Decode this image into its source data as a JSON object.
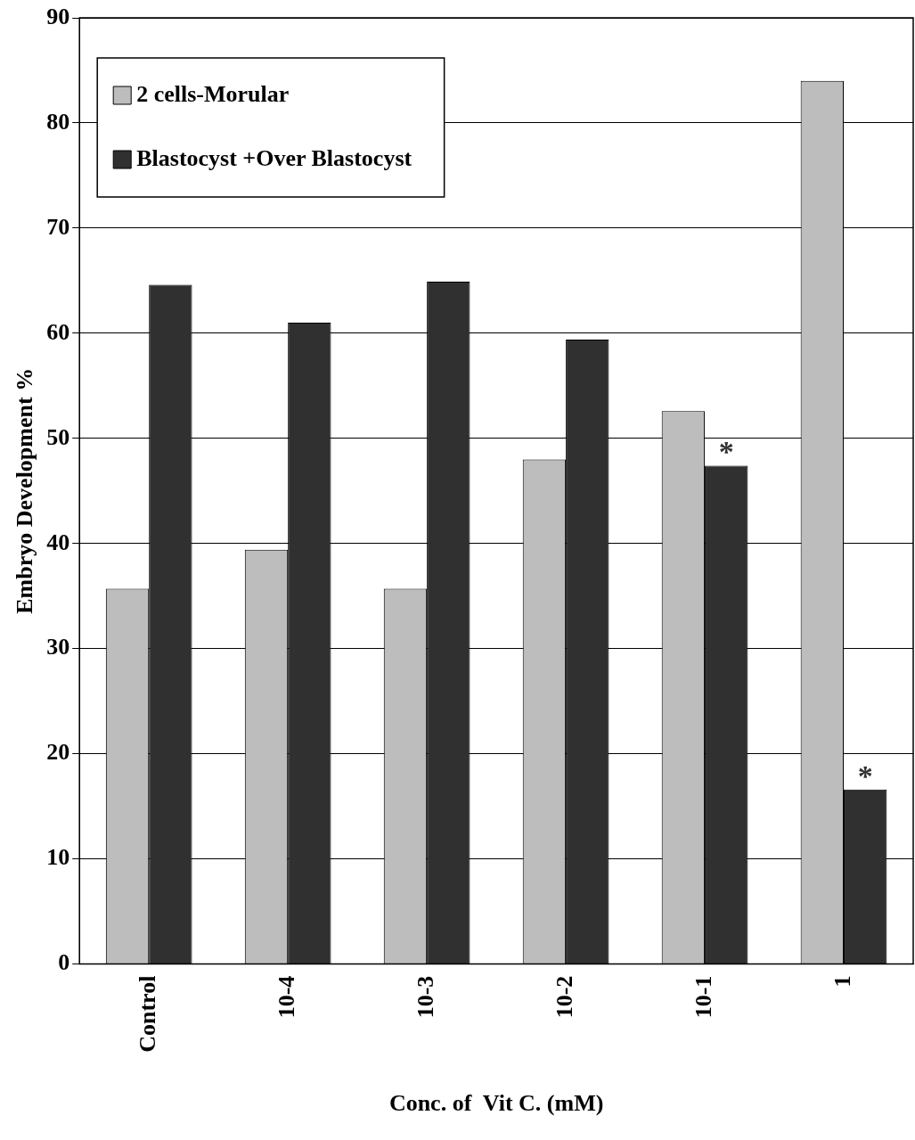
{
  "chart_data": {
    "type": "bar",
    "xlabel": "Conc. of  Vit C. (mM)",
    "ylabel": "Embryo Development %",
    "categories": [
      "Control",
      "10-4",
      "10-3",
      "10-2",
      "10-1",
      "1"
    ],
    "series": [
      {
        "name": "2 cells-Morular",
        "color": "#bdbdbd",
        "values": [
          35.7,
          39.4,
          35.7,
          48.0,
          52.6,
          84.0
        ]
      },
      {
        "name": "Blastocyst +Over Blastocyst",
        "color": "#303030",
        "values": [
          64.6,
          61.0,
          64.9,
          59.4,
          47.4,
          16.6
        ]
      }
    ],
    "ylim": [
      0,
      90
    ],
    "yticks": [
      0,
      10,
      20,
      30,
      40,
      50,
      60,
      70,
      80,
      90
    ],
    "grid": "y",
    "legend": "top left",
    "annotations": [
      {
        "text": "*",
        "x": "10-1",
        "y": 47.4
      },
      {
        "text": "*",
        "x": "1",
        "y": 16.6
      }
    ]
  }
}
